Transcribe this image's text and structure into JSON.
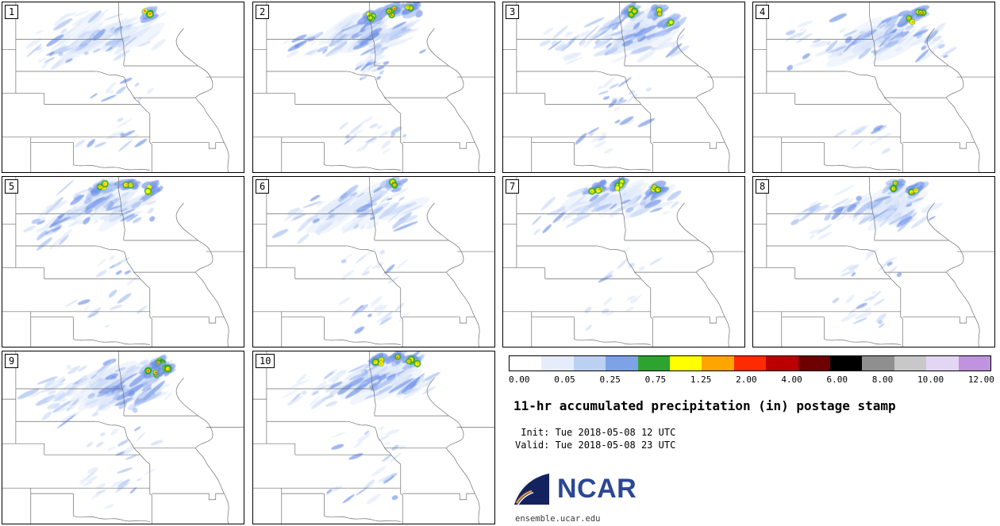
{
  "figure": {
    "title": "11-hr accumulated precipitation (in) postage stamp",
    "init": " Init: Tue 2018-05-08 12 UTC",
    "valid": "Valid: Tue 2018-05-08 23 UTC"
  },
  "branding": {
    "logo_text": "NCAR",
    "footer": "ensemble.ucar.edu",
    "logo_mark_color": "#14235f",
    "wordmark_color": "#2b4795"
  },
  "colorbar": {
    "ticks": [
      "0.00",
      "0.05",
      "0.25",
      "0.75",
      "1.25",
      "2.00",
      "4.00",
      "6.00",
      "8.00",
      "10.00",
      "12.00"
    ],
    "colors": [
      "#ffffff",
      "#e6edfa",
      "#bcd0f2",
      "#7da2e6",
      "#2fa32f",
      "#ffff00",
      "#ffa500",
      "#fe2a00",
      "#bb0000",
      "#6f0001",
      "#000000",
      "#8f8f8f",
      "#c8c8c8",
      "#e2d6f4",
      "#bf93e0"
    ]
  },
  "panels": [
    {
      "label": "1",
      "seed": 11,
      "cores": [
        [
          186,
          14,
          3
        ]
      ],
      "regions": [
        [
          138,
          42,
          72,
          30,
          62,
          16,
          2.5
        ],
        [
          72,
          58,
          45,
          33,
          26,
          12,
          2
        ],
        [
          152,
          112,
          48,
          22,
          10,
          8,
          1.6
        ],
        [
          138,
          170,
          52,
          26,
          12,
          9,
          1.8
        ]
      ]
    },
    {
      "label": "2",
      "seed": 22,
      "cores": [
        [
          176,
          12,
          3
        ],
        [
          200,
          9,
          2
        ],
        [
          152,
          16,
          1
        ]
      ],
      "regions": [
        [
          152,
          40,
          70,
          28,
          78,
          15,
          2.5
        ],
        [
          150,
          72,
          20,
          32,
          24,
          9,
          2
        ],
        [
          78,
          52,
          42,
          30,
          20,
          11,
          2
        ],
        [
          150,
          168,
          55,
          28,
          20,
          9,
          1.8
        ]
      ]
    },
    {
      "label": "3",
      "seed": 33,
      "cores": [
        [
          164,
          10,
          2
        ],
        [
          194,
          13,
          2
        ],
        [
          214,
          24,
          1
        ]
      ],
      "regions": [
        [
          160,
          42,
          72,
          30,
          70,
          15,
          2.4
        ],
        [
          80,
          50,
          40,
          28,
          18,
          11,
          2
        ],
        [
          150,
          115,
          50,
          24,
          16,
          8,
          1.6
        ],
        [
          142,
          170,
          52,
          26,
          13,
          9,
          1.8
        ]
      ]
    },
    {
      "label": "4",
      "seed": 44,
      "cores": [
        [
          211,
          14,
          3
        ],
        [
          196,
          21,
          2
        ]
      ],
      "regions": [
        [
          165,
          45,
          72,
          32,
          66,
          16,
          2.5
        ],
        [
          85,
          55,
          45,
          30,
          18,
          11,
          2
        ],
        [
          230,
          60,
          30,
          25,
          12,
          10,
          1.8
        ],
        [
          150,
          168,
          52,
          26,
          12,
          9,
          1.8
        ]
      ]
    },
    {
      "label": "5",
      "seed": 55,
      "cores": [
        [
          128,
          12,
          2
        ],
        [
          162,
          10,
          2
        ],
        [
          190,
          15,
          1
        ]
      ],
      "regions": [
        [
          130,
          38,
          70,
          28,
          74,
          15,
          2.5
        ],
        [
          70,
          60,
          42,
          32,
          24,
          12,
          2
        ],
        [
          150,
          112,
          48,
          22,
          9,
          8,
          1.6
        ],
        [
          135,
          170,
          50,
          25,
          10,
          8,
          1.6
        ]
      ]
    },
    {
      "label": "6",
      "seed": 66,
      "cores": [
        [
          178,
          10,
          2
        ]
      ],
      "regions": [
        [
          148,
          40,
          68,
          28,
          62,
          15,
          2.4
        ],
        [
          75,
          55,
          42,
          30,
          18,
          11,
          2
        ],
        [
          152,
          115,
          50,
          24,
          15,
          8,
          1.6
        ],
        [
          145,
          170,
          52,
          26,
          16,
          9,
          1.8
        ]
      ]
    },
    {
      "label": "7",
      "seed": 77,
      "cores": [
        [
          120,
          13,
          2
        ],
        [
          146,
          11,
          1
        ],
        [
          196,
          15,
          2
        ]
      ],
      "regions": [
        [
          150,
          32,
          75,
          22,
          52,
          15,
          2.3
        ],
        [
          75,
          50,
          40,
          26,
          14,
          10,
          1.8
        ],
        [
          150,
          112,
          48,
          22,
          8,
          8,
          1.5
        ],
        [
          140,
          168,
          50,
          25,
          9,
          8,
          1.6
        ]
      ]
    },
    {
      "label": "8",
      "seed": 88,
      "cores": [
        [
          180,
          12,
          2
        ],
        [
          206,
          17,
          2
        ]
      ],
      "regions": [
        [
          165,
          42,
          70,
          28,
          66,
          15,
          2.4
        ],
        [
          85,
          52,
          42,
          28,
          16,
          11,
          2
        ],
        [
          152,
          113,
          48,
          22,
          11,
          8,
          1.6
        ],
        [
          148,
          170,
          52,
          26,
          15,
          9,
          1.8
        ]
      ]
    },
    {
      "label": "9",
      "seed": 99,
      "cores": [
        [
          199,
          15,
          3
        ],
        [
          189,
          25,
          3
        ],
        [
          208,
          22,
          2
        ]
      ],
      "regions": [
        [
          148,
          45,
          75,
          36,
          92,
          17,
          2.7
        ],
        [
          70,
          62,
          45,
          34,
          30,
          13,
          2.2
        ],
        [
          150,
          115,
          50,
          24,
          13,
          8,
          1.6
        ],
        [
          140,
          172,
          55,
          28,
          18,
          9,
          1.8
        ]
      ]
    },
    {
      "label": "10",
      "seed": 110,
      "cores": [
        [
          160,
          10,
          2
        ],
        [
          184,
          9,
          3
        ],
        [
          204,
          12,
          2
        ]
      ],
      "regions": [
        [
          158,
          34,
          72,
          26,
          84,
          16,
          2.6
        ],
        [
          78,
          55,
          42,
          30,
          18,
          11,
          2
        ],
        [
          152,
          115,
          50,
          24,
          15,
          8,
          1.6
        ],
        [
          142,
          170,
          52,
          26,
          12,
          9,
          1.8
        ]
      ]
    }
  ]
}
